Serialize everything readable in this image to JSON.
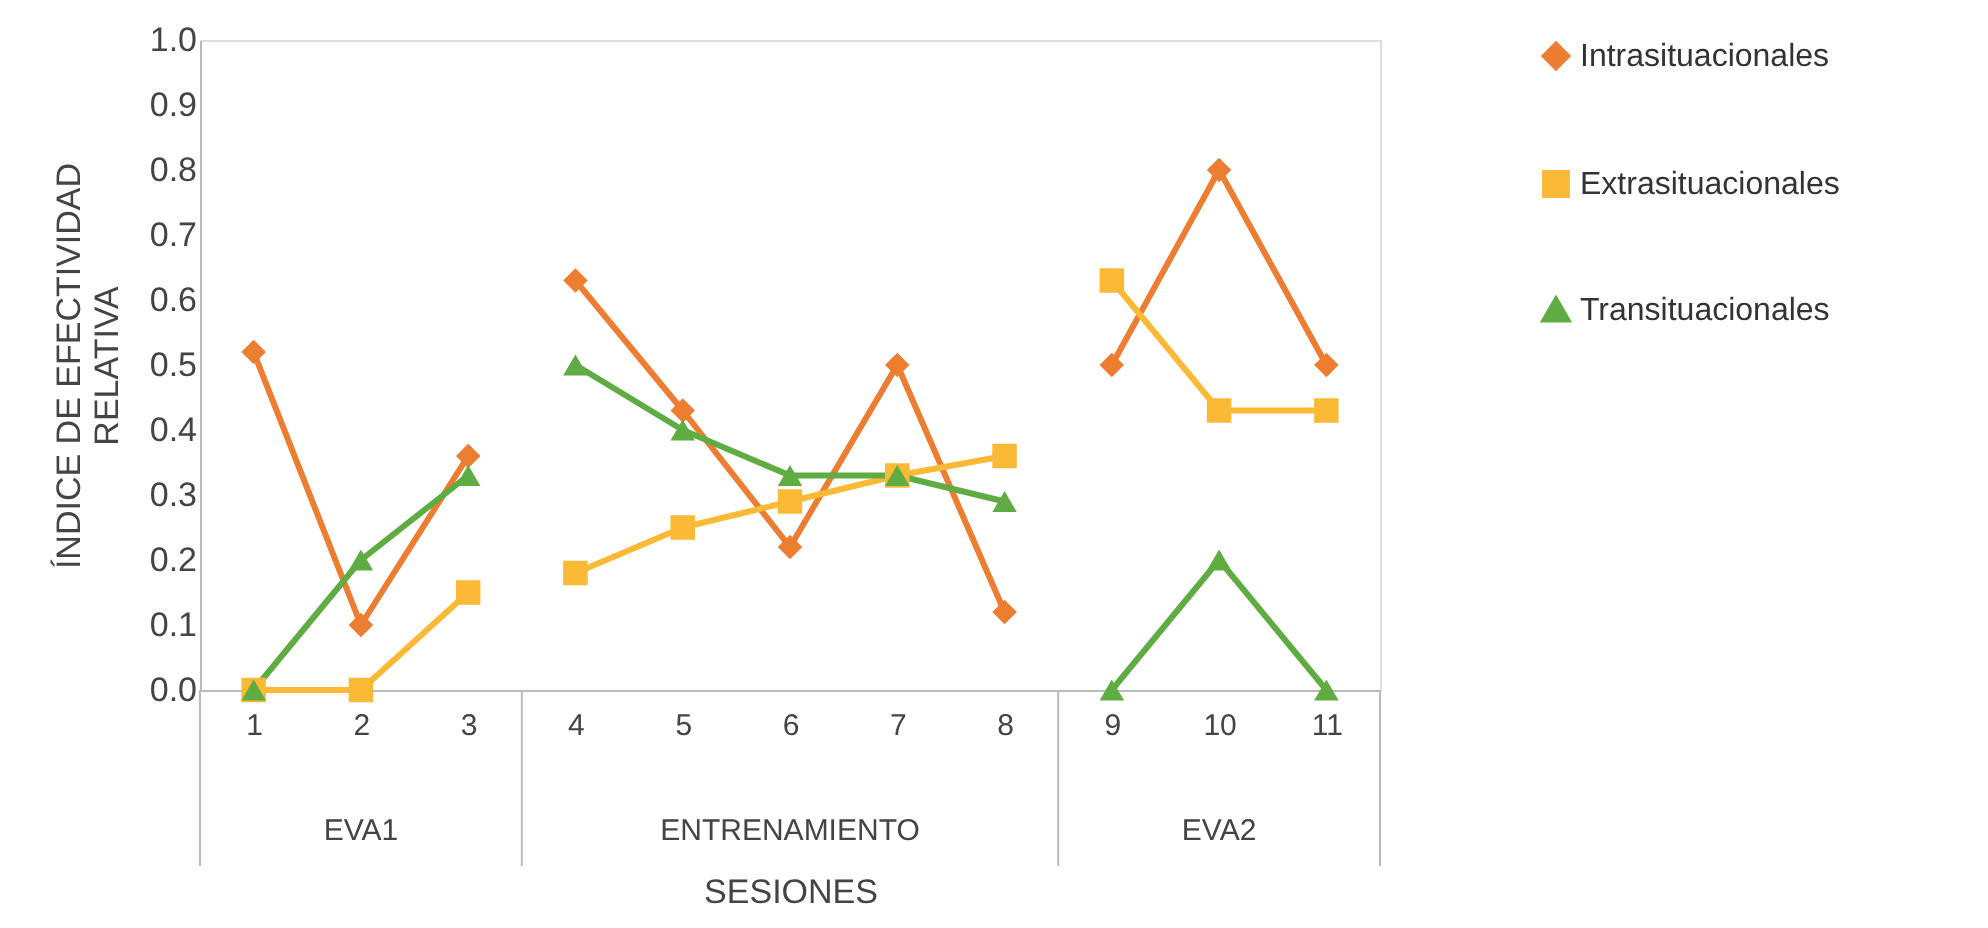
{
  "chart_data": {
    "type": "line",
    "xlabel": "SESIONES",
    "ylabel": "ÍNDICE DE EFECTIVIDAD RELATIVA",
    "categories": [
      "1",
      "2",
      "3",
      "4",
      "5",
      "6",
      "7",
      "8",
      "9",
      "10",
      "11"
    ],
    "ylim": [
      0,
      1
    ],
    "yticks": [
      {
        "value": 0,
        "label": "0.0"
      },
      0.1,
      0.2,
      0.3,
      0.4,
      0.5,
      0.6,
      0.7,
      0.8,
      0.9,
      {
        "value": 1,
        "label": "1.0"
      }
    ],
    "grid": false,
    "legend": "right",
    "annotations": [
      "EVA1",
      "ENTRENAMIENTO",
      "EVA2"
    ],
    "series": [
      {
        "name": "Intrasituacionales",
        "color": "#ed7d31",
        "marker": "diamond",
        "x": [
          "1",
          "2",
          "3"
        ],
        "values": [
          0.52,
          0.1,
          0.36
        ]
      },
      {
        "name": "Extrasituacionales",
        "color": "#fbb936",
        "marker": "square",
        "x": [
          "1",
          "2",
          "3"
        ],
        "values": [
          0,
          0,
          0.15
        ]
      },
      {
        "name": "Transituacionales",
        "color": "#5eac42",
        "marker": "triangle",
        "x": [
          "1",
          "2",
          "3"
        ],
        "values": [
          0,
          0.2,
          0.33
        ]
      },
      {
        "color": "#ed7d31",
        "marker": "diamond",
        "x": [
          "4",
          "5",
          "6",
          "7",
          "8"
        ],
        "values": [
          0.63,
          0.43,
          0.22,
          0.5,
          0.12
        ]
      },
      {
        "color": "#fbb936",
        "marker": "square",
        "x": [
          "4",
          "5",
          "6",
          "7",
          "8"
        ],
        "values": [
          0.18,
          0.25,
          0.29,
          0.33,
          0.36
        ]
      },
      {
        "color": "#5eac42",
        "marker": "triangle",
        "x": [
          "4",
          "5",
          "6",
          "7",
          "8"
        ],
        "values": [
          0.5,
          0.4,
          0.33,
          0.33,
          0.29
        ]
      },
      {
        "color": "#ed7d31",
        "marker": "diamond",
        "x": [
          "9",
          "10",
          "11"
        ],
        "values": [
          0.5,
          0.8,
          0.5
        ]
      },
      {
        "color": "#fbb936",
        "marker": "square",
        "x": [
          "9",
          "10",
          "11"
        ],
        "values": [
          0.63,
          0.43,
          0.43
        ]
      },
      {
        "color": "#5eac42",
        "marker": "triangle",
        "x": [
          "9",
          "10",
          "11"
        ],
        "values": [
          0,
          0.2,
          0
        ]
      }
    ]
  }
}
